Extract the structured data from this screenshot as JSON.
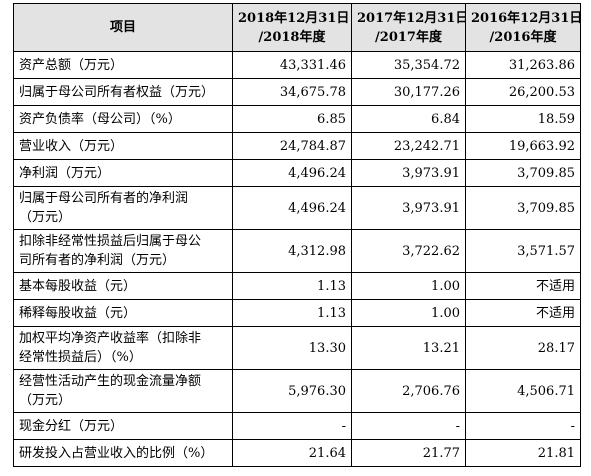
{
  "table": {
    "header": [
      "项目",
      [
        "2018年12月31日",
        "/2018年度"
      ],
      [
        "2017年12月31日",
        "/2017年度"
      ],
      [
        "2016年12月31日",
        "/2016年度"
      ]
    ],
    "rows": [
      [
        [
          "资产总额（万元）"
        ],
        "43,331.46",
        "35,354.72",
        "31,263.86"
      ],
      [
        [
          "归属于母公司所有者权益（万元）"
        ],
        "34,675.78",
        "30,177.26",
        "26,200.53"
      ],
      [
        [
          "资产负债率（母公司）（%）"
        ],
        "6.85",
        "6.84",
        "18.59"
      ],
      [
        [
          "营业收入（万元）"
        ],
        "24,784.87",
        "23,242.71",
        "19,663.92"
      ],
      [
        [
          "净利润（万元）"
        ],
        "4,496.24",
        "3,973.91",
        "3,709.85"
      ],
      [
        [
          "归属于母公司所有者的净利润",
          "（万元）"
        ],
        "4,496.24",
        "3,973.91",
        "3,709.85"
      ],
      [
        [
          "扣除非经常性损益后归属于母公",
          "司所有者的净利润（万元）"
        ],
        "4,312.98",
        "3,722.62",
        "3,571.57"
      ],
      [
        [
          "基本每股收益（元）"
        ],
        "1.13",
        "1.00",
        "不适用"
      ],
      [
        [
          "稀释每股收益（元）"
        ],
        "1.13",
        "1.00",
        "不适用"
      ],
      [
        [
          "加权平均净资产收益率（扣除非",
          "经常性损益后）（%）"
        ],
        "13.30",
        "13.21",
        "28.17"
      ],
      [
        [
          "经营性活动产生的现金流量净额",
          "（万元）"
        ],
        "5,976.30",
        "2,706.76",
        "4,506.71"
      ],
      [
        [
          "现金分红（万元）"
        ],
        "-",
        "-",
        "-"
      ],
      [
        [
          "研发投入占营业收入的比例（%）"
        ],
        "21.64",
        "21.77",
        "21.81"
      ]
    ]
  }
}
